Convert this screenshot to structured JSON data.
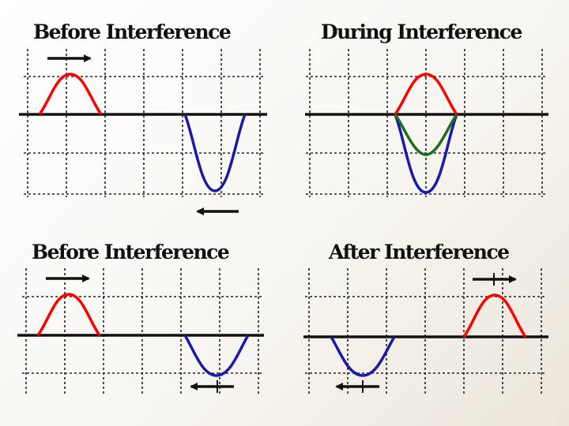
{
  "panels": [
    {
      "title": "Before Interference"
    },
    {
      "title": "During Interference"
    },
    {
      "title": "Before Interference"
    },
    {
      "title": "After Interference"
    }
  ],
  "colors": {
    "wave_red": "#ff0000",
    "wave_blue": "#1a1aa8",
    "wave_green": "#1e6b1e",
    "axis": "#111111",
    "grid": "#222222",
    "arrow": "#111111"
  }
}
